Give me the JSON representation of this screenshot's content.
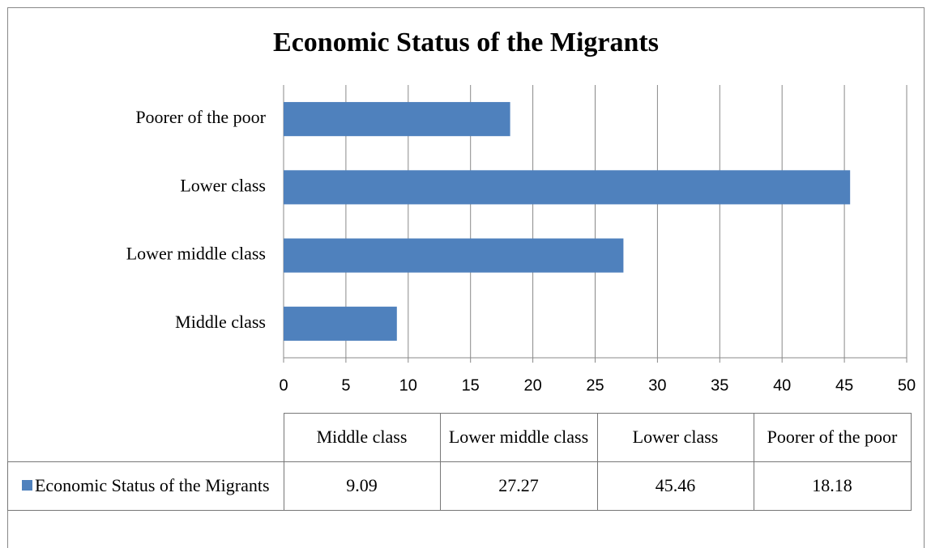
{
  "chart_data": {
    "type": "bar",
    "orientation": "horizontal",
    "title": "Economic Status of the Migrants",
    "categories": [
      "Middle class",
      "Lower middle class",
      "Lower class",
      "Poorer of the poor"
    ],
    "series": [
      {
        "name": "Economic Status of the Migrants",
        "color": "#4f81bd",
        "values": [
          9.09,
          27.27,
          45.46,
          18.18
        ]
      }
    ],
    "xlim": [
      0,
      50
    ],
    "xticks": [
      0,
      5,
      10,
      15,
      20,
      25,
      30,
      35,
      40,
      45,
      50
    ],
    "grid": true,
    "data_table": true
  }
}
